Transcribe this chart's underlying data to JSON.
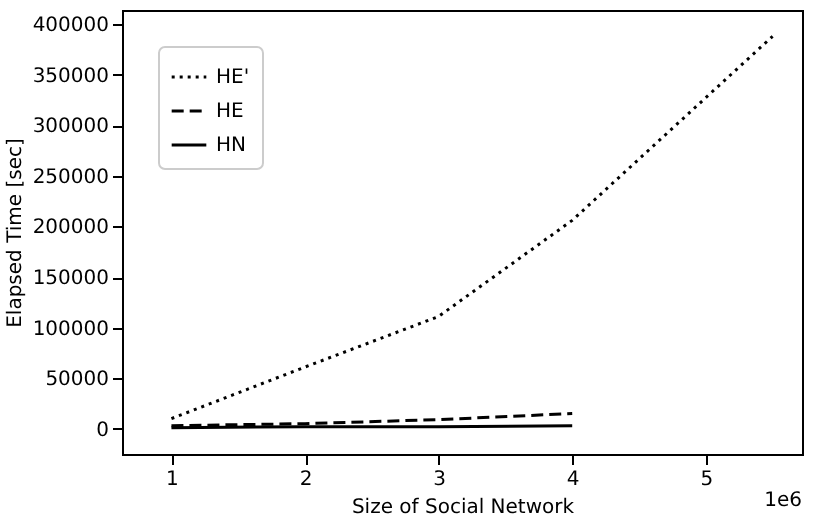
{
  "chart_data": {
    "type": "line",
    "xlabel": "Size of Social Network",
    "ylabel": "Elapsed Time [sec]",
    "annotations": [
      "1e6"
    ],
    "series": [
      {
        "name": "HE'",
        "color": "#000000",
        "line_style": "dotted",
        "x": [
          1,
          2,
          3,
          4,
          5.5
        ],
        "values": [
          10000,
          61000,
          111000,
          206000,
          388000
        ]
      },
      {
        "name": "HE",
        "color": "#000000",
        "line_style": "dashed",
        "x": [
          1,
          2,
          3,
          4
        ],
        "values": [
          3000,
          5000,
          9000,
          15000
        ]
      },
      {
        "name": "HN",
        "color": "#000000",
        "line_style": "solid",
        "x": [
          1,
          2,
          3,
          4
        ],
        "values": [
          1000,
          2000,
          2000,
          3000
        ]
      }
    ],
    "xlim": [
      0.63,
      5.72
    ],
    "xticks": [
      1,
      2,
      3,
      4,
      5
    ],
    "ylim": [
      -25000,
      414000
    ],
    "yticks": [
      0,
      50000,
      100000,
      150000,
      200000,
      250000,
      300000,
      350000,
      400000
    ],
    "grid": false,
    "legend": "top left",
    "marker": "none"
  }
}
